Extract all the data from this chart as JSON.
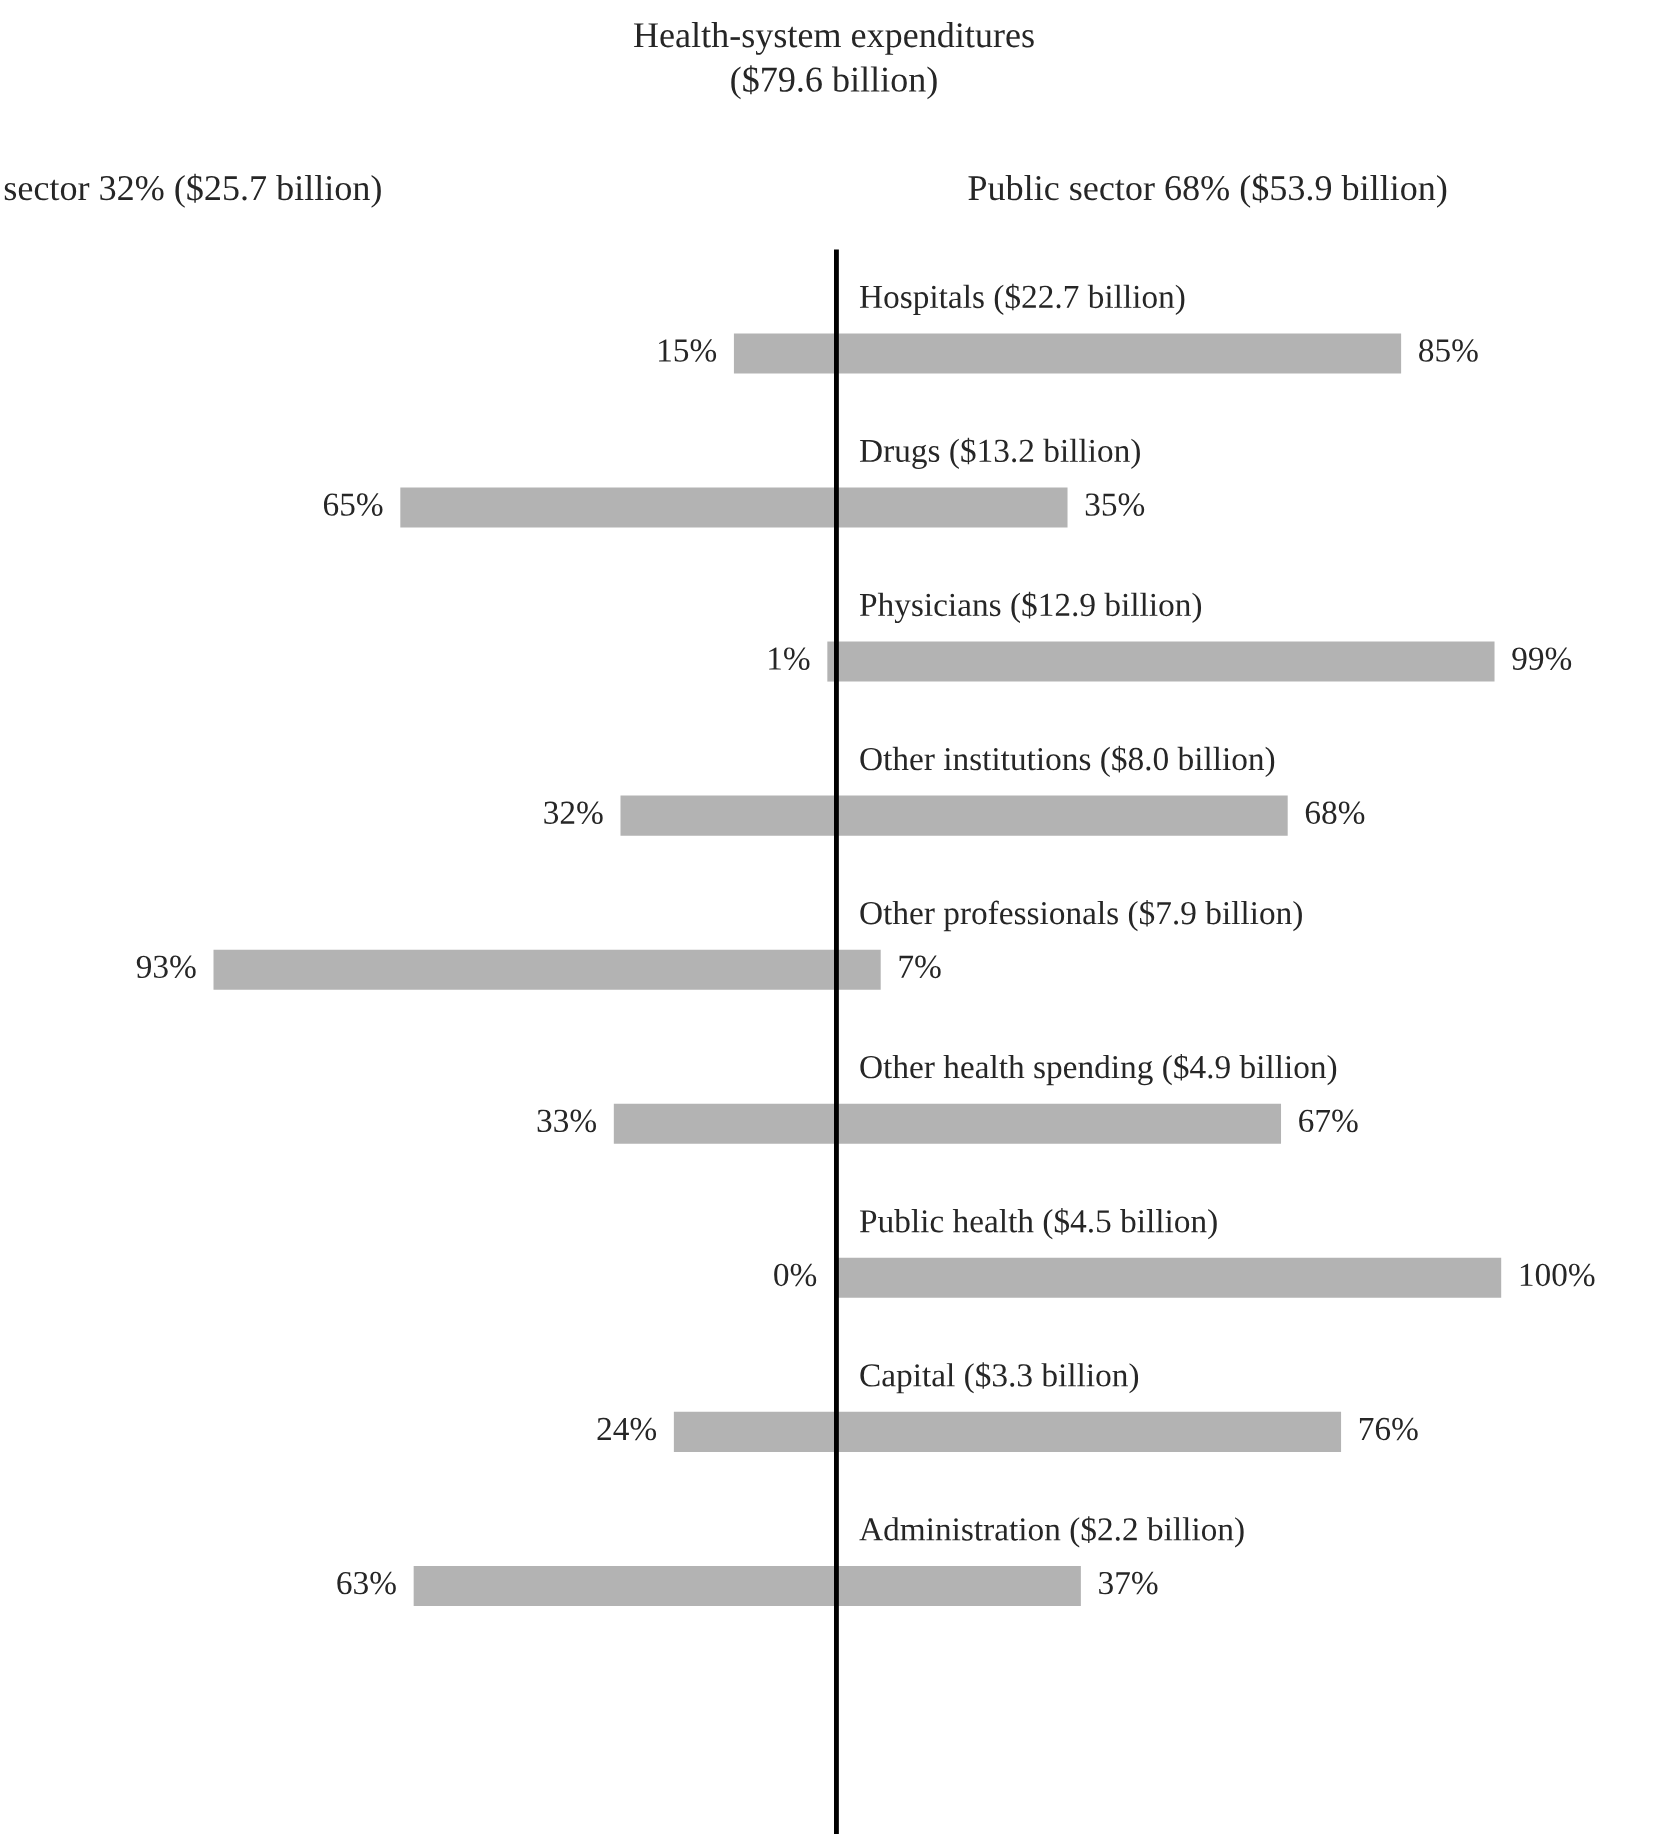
{
  "chart_data": [
    {
      "type": "bar",
      "orientation": "horizontal",
      "title": "Health-system expenditures\n($79.6 billion)",
      "subtitle": "sector 32% ($25.7 billion)",
      "categories": [
        null,
        null,
        null,
        null,
        null,
        null,
        null,
        null,
        null
      ],
      "values": [
        15,
        65,
        1,
        32,
        93,
        33,
        0,
        24,
        63
      ],
      "color": "#b3b3b3",
      "value_labels": [
        "15%",
        "65%",
        "1%",
        "32%",
        "93%",
        "33%",
        "0%",
        "24%",
        "63%"
      ]
    },
    {
      "type": "bar",
      "orientation": "horizontal",
      "subtitle": "Public sector 68% ($53.9 billion)",
      "categories": [
        "Hospitals ($22.7 billion)",
        "Drugs ($13.2 billion)",
        "Physicians ($12.9 billion)",
        "Other institutions ($8.0 billion)",
        "Other professionals ($7.9 billion)",
        "Other health spending ($4.9 billion)",
        "Public health ($4.5 billion)",
        "Capital ($3.3 billion)",
        "Administration ($2.2 billion)"
      ],
      "values": [
        85,
        35,
        99,
        68,
        7,
        67,
        100,
        76,
        37
      ],
      "color": "#b3b3b3",
      "value_labels": [
        "85%",
        "35%",
        "99%",
        "68%",
        "7%",
        "67%",
        "100%",
        "76%",
        "37%"
      ]
    }
  ]
}
